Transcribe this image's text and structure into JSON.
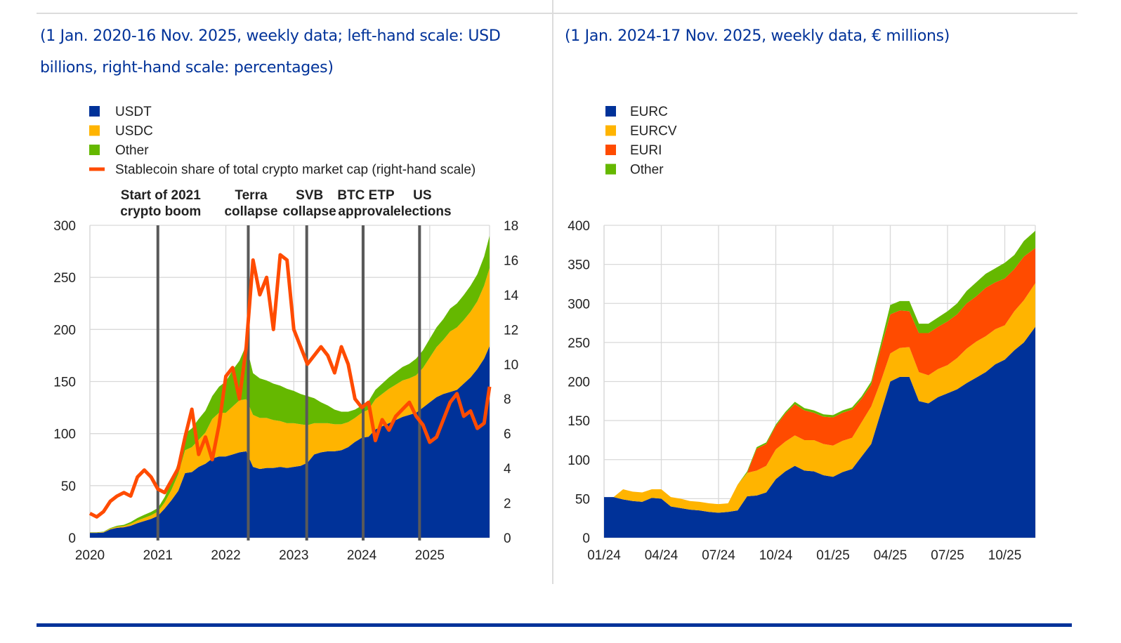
{
  "page": {
    "left_subtitle": "(1 Jan. 2020-16 Nov. 2025, weekly data; left-hand scale: USD billions, right-hand scale: percentages)",
    "right_subtitle": "(1 Jan. 2024-17 Nov. 2025, weekly data, € millions)"
  },
  "colors": {
    "blue": "#003299",
    "yellow": "#ffb400",
    "green": "#65b800",
    "orange": "#ff4b00",
    "event_line": "#595959",
    "grid": "#d9d9d9",
    "text": "#222222",
    "subtitle": "#003299"
  },
  "chart_data": [
    {
      "type": "area",
      "stacked": true,
      "title": "(1 Jan. 2020-16 Nov. 2025, weekly data; left-hand scale: USD billions, right-hand scale: percentages)",
      "xlabel": "",
      "ylabel": "USD billions",
      "y2label": "percentages",
      "xlim": [
        2020.0,
        2025.88
      ],
      "ylim": [
        0,
        300
      ],
      "y2lim": [
        0,
        18
      ],
      "yticks": [
        0,
        50,
        100,
        150,
        200,
        250,
        300
      ],
      "y2ticks": [
        0,
        2,
        4,
        6,
        8,
        10,
        12,
        14,
        16,
        18
      ],
      "xticks": [
        2020,
        2021,
        2022,
        2023,
        2024,
        2025
      ],
      "xtick_labels": [
        "2020",
        "2021",
        "2022",
        "2023",
        "2024",
        "2025"
      ],
      "grid": true,
      "legend_position": "top-left",
      "legend": [
        {
          "label": "USDT",
          "kind": "area",
          "color_key": "blue"
        },
        {
          "label": "USDC",
          "kind": "area",
          "color_key": "yellow"
        },
        {
          "label": "Other",
          "kind": "area",
          "color_key": "green"
        },
        {
          "label": "Stablecoin share of total crypto market cap (right-hand scale)",
          "kind": "line",
          "color_key": "orange"
        }
      ],
      "events": [
        {
          "x": 2021.0,
          "label_line1": "Start of 2021",
          "label_line2": "crypto boom"
        },
        {
          "x": 2022.33,
          "label_line1": "Terra",
          "label_line2": "collapse"
        },
        {
          "x": 2023.19,
          "label_line1": "SVB",
          "label_line2": "collapse"
        },
        {
          "x": 2024.02,
          "label_line1": "BTC ETP",
          "label_line2": "approval"
        },
        {
          "x": 2024.85,
          "label_line1": "US",
          "label_line2": "elections"
        }
      ],
      "x": [
        2020.0,
        2020.1,
        2020.2,
        2020.3,
        2020.4,
        2020.5,
        2020.6,
        2020.7,
        2020.8,
        2020.9,
        2021.0,
        2021.1,
        2021.2,
        2021.3,
        2021.4,
        2021.5,
        2021.6,
        2021.7,
        2021.8,
        2021.9,
        2022.0,
        2022.1,
        2022.2,
        2022.3,
        2022.4,
        2022.5,
        2022.6,
        2022.7,
        2022.8,
        2022.9,
        2023.0,
        2023.1,
        2023.2,
        2023.3,
        2023.4,
        2023.5,
        2023.6,
        2023.7,
        2023.8,
        2023.9,
        2024.0,
        2024.1,
        2024.2,
        2024.3,
        2024.4,
        2024.5,
        2024.6,
        2024.7,
        2024.8,
        2024.9,
        2025.0,
        2025.1,
        2025.2,
        2025.3,
        2025.4,
        2025.5,
        2025.6,
        2025.7,
        2025.8,
        2025.88
      ],
      "series": [
        {
          "name": "USDT",
          "color_key": "blue",
          "values": [
            4.6,
            4.6,
            5,
            8,
            9.5,
            10,
            11.5,
            14,
            16,
            18,
            21,
            28,
            36,
            45,
            62,
            63,
            68,
            71,
            76,
            78,
            78,
            80,
            82,
            83,
            68,
            66,
            67,
            67,
            68,
            67,
            68,
            69,
            72,
            80,
            82,
            83,
            83,
            84,
            87,
            92,
            96,
            97,
            104,
            107,
            110,
            113,
            116,
            118,
            120,
            125,
            130,
            135,
            138,
            140,
            142,
            148,
            154,
            162,
            172,
            184
          ]
        },
        {
          "name": "USDC",
          "color_key": "yellow",
          "values": [
            0.4,
            0.4,
            0.5,
            0.7,
            1,
            1.2,
            1.8,
            2.5,
            3,
            3.5,
            4,
            6,
            10,
            16,
            22,
            24,
            26,
            30,
            38,
            42,
            42,
            46,
            50,
            50,
            50,
            49,
            48,
            46,
            44,
            43,
            42,
            40,
            36,
            30,
            28,
            27,
            26,
            25,
            24,
            23,
            24,
            26,
            29,
            31,
            33,
            34,
            35,
            35,
            36,
            38,
            43,
            48,
            52,
            58,
            60,
            61,
            63,
            65,
            70,
            75
          ]
        },
        {
          "name": "Other",
          "color_key": "green",
          "values": [
            0.2,
            0.2,
            0.3,
            0.6,
            1,
            1.2,
            1.8,
            2.5,
            3,
            3.3,
            3.5,
            5,
            7,
            12,
            16,
            18,
            20,
            21,
            22,
            25,
            30,
            35,
            38,
            52,
            40,
            38,
            36,
            35,
            34,
            33,
            31,
            29,
            28,
            24,
            20,
            17,
            14,
            12,
            10,
            8,
            7,
            8,
            9,
            10,
            11,
            12,
            13,
            14,
            16,
            17,
            18,
            19,
            20,
            22,
            23,
            24,
            25,
            26,
            28,
            31
          ]
        },
        {
          "name": "Stablecoin share of total crypto market cap",
          "color_key": "orange",
          "axis": "right",
          "values": [
            1.4,
            1.2,
            1.5,
            2.1,
            2.4,
            2.6,
            2.4,
            3.5,
            3.9,
            3.5,
            2.8,
            2.6,
            3.3,
            4.0,
            5.8,
            7.4,
            4.8,
            5.8,
            4.5,
            6.5,
            9.3,
            9.8,
            8.0,
            11.0,
            16.0,
            14.0,
            15.0,
            12.0,
            16.3,
            16.0,
            12.0,
            11.0,
            10.0,
            10.5,
            11.0,
            10.5,
            9.5,
            11.0,
            10.0,
            8.0,
            7.5,
            7.8,
            5.6,
            6.8,
            6.2,
            7.0,
            7.4,
            7.8,
            7.0,
            6.5,
            5.5,
            5.8,
            6.8,
            7.8,
            8.3,
            7.0,
            7.3,
            6.3,
            6.6,
            8.7
          ]
        }
      ]
    },
    {
      "type": "area",
      "stacked": true,
      "title": "(1 Jan. 2024-17 Nov. 2025, weekly data, € millions)",
      "xlabel": "",
      "ylabel": "€ millions",
      "xlim": [
        0,
        22.6
      ],
      "ylim": [
        0,
        400
      ],
      "yticks": [
        0,
        50,
        100,
        150,
        200,
        250,
        300,
        350,
        400
      ],
      "xticks": [
        0,
        3,
        6,
        9,
        12,
        15,
        18,
        21
      ],
      "xtick_labels": [
        "01/24",
        "04/24",
        "07/24",
        "10/24",
        "01/25",
        "04/25",
        "07/25",
        "10/25"
      ],
      "grid": true,
      "legend_position": "top-left",
      "legend": [
        {
          "label": "EURC",
          "kind": "area",
          "color_key": "blue"
        },
        {
          "label": "EURCV",
          "kind": "area",
          "color_key": "yellow"
        },
        {
          "label": "EURI",
          "kind": "area",
          "color_key": "orange"
        },
        {
          "label": "Other",
          "kind": "area",
          "color_key": "green"
        }
      ],
      "x": [
        0,
        0.5,
        1,
        1.5,
        2,
        2.5,
        3,
        3.5,
        4,
        4.5,
        5,
        5.5,
        6,
        6.5,
        7,
        7.5,
        8,
        8.5,
        9,
        9.5,
        10,
        10.5,
        11,
        11.5,
        12,
        12.5,
        13,
        13.5,
        14,
        14.5,
        15,
        15.5,
        16,
        16.5,
        17,
        17.5,
        18,
        18.5,
        19,
        19.5,
        20,
        20.5,
        21,
        21.5,
        22,
        22.6
      ],
      "series": [
        {
          "name": "EURC",
          "color_key": "blue",
          "values": [
            52,
            52,
            49,
            47,
            46,
            51,
            50,
            40,
            38,
            36,
            35,
            33,
            32,
            33,
            35,
            53,
            54,
            58,
            75,
            85,
            92,
            86,
            85,
            80,
            78,
            84,
            88,
            104,
            120,
            160,
            200,
            206,
            206,
            175,
            172,
            180,
            185,
            190,
            198,
            205,
            212,
            222,
            228,
            240,
            250,
            270
          ]
        },
        {
          "name": "EURCV",
          "color_key": "yellow",
          "values": [
            0,
            0,
            13,
            12,
            12,
            11,
            12,
            12,
            12,
            11,
            11,
            11,
            11,
            11,
            33,
            30,
            32,
            34,
            38,
            38,
            39,
            39,
            40,
            40,
            40,
            40,
            40,
            44,
            48,
            40,
            36,
            37,
            38,
            37,
            36,
            36,
            36,
            40,
            44,
            46,
            46,
            45,
            44,
            50,
            54,
            56
          ]
        },
        {
          "name": "EURI",
          "color_key": "orange",
          "values": [
            0,
            0,
            0,
            0,
            0,
            0,
            0,
            0,
            0,
            0,
            0,
            0,
            0,
            0,
            0,
            0,
            28,
            28,
            30,
            36,
            40,
            38,
            35,
            35,
            36,
            36,
            36,
            30,
            28,
            42,
            50,
            48,
            46,
            50,
            54,
            54,
            56,
            56,
            58,
            58,
            62,
            60,
            60,
            54,
            56,
            45
          ]
        },
        {
          "name": "Other",
          "color_key": "green",
          "values": [
            0,
            0,
            0,
            0,
            0,
            0,
            0,
            0,
            0,
            0,
            0,
            0,
            0,
            0,
            0,
            2,
            2,
            2,
            2,
            2,
            3,
            3,
            3,
            3,
            3,
            3,
            3,
            3,
            4,
            6,
            12,
            12,
            13,
            12,
            12,
            12,
            13,
            14,
            16,
            18,
            18,
            18,
            20,
            18,
            20,
            22
          ]
        }
      ]
    }
  ]
}
